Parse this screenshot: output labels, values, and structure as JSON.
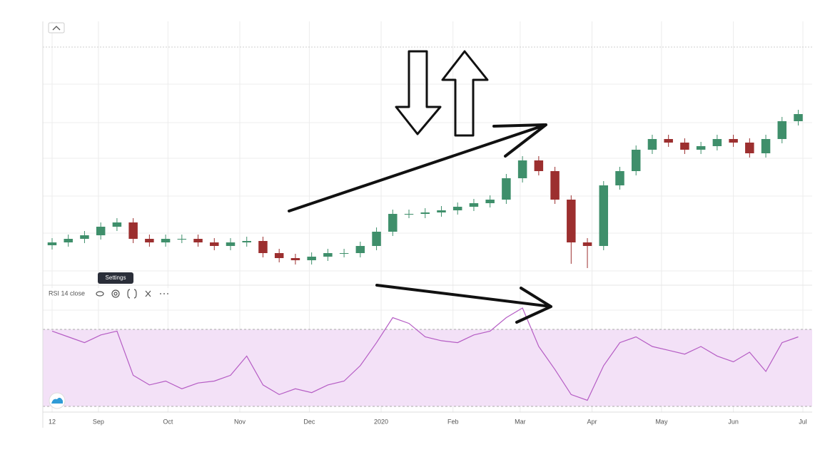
{
  "chart_data": {
    "type": "candlestick",
    "x": [
      0,
      7,
      14,
      21,
      28,
      35,
      42,
      49,
      56,
      63,
      70,
      77,
      84,
      91,
      98,
      105,
      112,
      119,
      126,
      133,
      140,
      147,
      154,
      161,
      168,
      175,
      182,
      189,
      196,
      203,
      210,
      217,
      224,
      231,
      238,
      245,
      252,
      259,
      266,
      273,
      280,
      287,
      294,
      301,
      308,
      315,
      322
    ],
    "open": [
      28,
      30,
      32.5,
      35,
      41,
      44,
      32.5,
      30,
      32.5,
      32.5,
      30,
      27.5,
      30,
      31,
      22.5,
      19,
      17.5,
      20,
      22.5,
      22.5,
      27.5,
      37.5,
      50,
      50,
      51,
      52.5,
      55,
      57.5,
      60,
      75,
      87.5,
      80,
      60,
      30,
      27.5,
      70,
      80,
      95,
      102.5,
      100,
      95,
      97.5,
      102.5,
      100,
      92.5,
      102.5,
      115
    ],
    "high": [
      33,
      35.5,
      38,
      44,
      47,
      47,
      35.5,
      35.5,
      35.5,
      35.5,
      33,
      33,
      34,
      34,
      25.5,
      22,
      23,
      25.5,
      25.5,
      30.5,
      40.5,
      53,
      53,
      54,
      55.5,
      58,
      60.5,
      63,
      78,
      90.5,
      90.5,
      83,
      63,
      33,
      73,
      83,
      98,
      105.5,
      105.5,
      103,
      100.5,
      105.5,
      105.5,
      103,
      105.5,
      118,
      123
    ],
    "low": [
      25,
      27,
      29.5,
      32,
      38,
      29.5,
      27,
      27,
      29.5,
      27,
      24.5,
      24.5,
      27,
      19.5,
      16,
      14.5,
      14.5,
      17,
      19.5,
      19.5,
      24.5,
      34.5,
      47,
      47,
      48,
      49.5,
      52,
      54.5,
      57,
      72,
      77,
      57,
      15,
      12,
      24.5,
      67,
      77,
      92,
      97,
      92,
      92,
      94.5,
      97,
      89.5,
      89.5,
      99.5,
      112
    ],
    "close": [
      30,
      32.5,
      35,
      41,
      44,
      32.5,
      30,
      32.5,
      32.5,
      30,
      27.5,
      30,
      31,
      22.5,
      19,
      17.5,
      20,
      22.5,
      22.5,
      27.5,
      37.5,
      50,
      50,
      51,
      52.5,
      55,
      57.5,
      60,
      75,
      87.5,
      80,
      60,
      30,
      27.5,
      70,
      80,
      95,
      102.5,
      100,
      95,
      97.5,
      102.5,
      100,
      92.5,
      102.5,
      115,
      120
    ],
    "up_color": "#3f8f6b",
    "down_color": "#9c2f2f",
    "ylim": [
      0,
      180
    ],
    "xlim": [
      -4,
      328
    ],
    "xticks": [
      {
        "value": 0,
        "label": "12"
      },
      {
        "value": 20,
        "label": "Sep"
      },
      {
        "value": 50,
        "label": "Oct"
      },
      {
        "value": 81,
        "label": "Nov"
      },
      {
        "value": 111,
        "label": "Dec"
      },
      {
        "value": 142,
        "label": "2020"
      },
      {
        "value": 173,
        "label": "Feb"
      },
      {
        "value": 202,
        "label": "Mar"
      },
      {
        "value": 233,
        "label": "Apr"
      },
      {
        "value": 263,
        "label": "May"
      },
      {
        "value": 294,
        "label": "Jun"
      },
      {
        "value": 324,
        "label": "Jul"
      }
    ],
    "grid": true,
    "indicator": {
      "type": "line",
      "name": "RSI 14 close",
      "color": "#b55cc4",
      "values": [
        68,
        65,
        62,
        66,
        68,
        45,
        40,
        42,
        38,
        41,
        42,
        45,
        55,
        40,
        35,
        38,
        36,
        40,
        42,
        50,
        62,
        75,
        72,
        65,
        63,
        62,
        66,
        68,
        75,
        80,
        60,
        48,
        35,
        32,
        50,
        62,
        65,
        60,
        58,
        56,
        60,
        55,
        52,
        57,
        47,
        62,
        65
      ],
      "ylim": [
        27,
        90
      ]
    }
  },
  "ui": {
    "tooltip": "Settings"
  }
}
